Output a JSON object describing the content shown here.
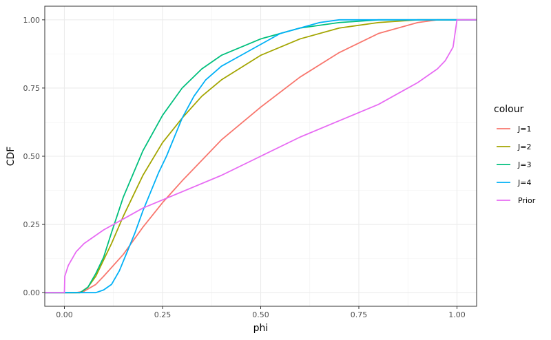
{
  "chart_data": {
    "type": "line",
    "xlabel": "phi",
    "ylabel": "CDF",
    "xlim": [
      -0.05,
      1.05
    ],
    "ylim": [
      -0.05,
      1.05
    ],
    "x_ticks": [
      0.0,
      0.25,
      0.5,
      0.75,
      1.0
    ],
    "x_tick_labels": [
      "0.00",
      "0.25",
      "0.50",
      "0.75",
      "1.00"
    ],
    "y_ticks": [
      0.0,
      0.25,
      0.5,
      0.75,
      1.0
    ],
    "y_tick_labels": [
      "0.00",
      "0.25",
      "0.50",
      "0.75",
      "1.00"
    ],
    "grid": true,
    "legend": {
      "title": "colour",
      "position": "right"
    },
    "series": [
      {
        "name": "J=1",
        "color": "#F8766D",
        "points": [
          [
            -0.05,
            0
          ],
          [
            0.0,
            0
          ],
          [
            0.03,
            0
          ],
          [
            0.05,
            0.005
          ],
          [
            0.08,
            0.03
          ],
          [
            0.1,
            0.06
          ],
          [
            0.15,
            0.14
          ],
          [
            0.2,
            0.24
          ],
          [
            0.25,
            0.33
          ],
          [
            0.3,
            0.41
          ],
          [
            0.4,
            0.56
          ],
          [
            0.5,
            0.68
          ],
          [
            0.6,
            0.79
          ],
          [
            0.7,
            0.88
          ],
          [
            0.8,
            0.95
          ],
          [
            0.9,
            0.99
          ],
          [
            0.95,
            1.0
          ],
          [
            1.0,
            1.0
          ],
          [
            1.05,
            1.0
          ]
        ]
      },
      {
        "name": "J=2",
        "color": "#A3A500",
        "points": [
          [
            -0.05,
            0
          ],
          [
            0.0,
            0
          ],
          [
            0.04,
            0
          ],
          [
            0.06,
            0.02
          ],
          [
            0.08,
            0.06
          ],
          [
            0.1,
            0.12
          ],
          [
            0.12,
            0.18
          ],
          [
            0.15,
            0.28
          ],
          [
            0.2,
            0.43
          ],
          [
            0.25,
            0.55
          ],
          [
            0.3,
            0.64
          ],
          [
            0.35,
            0.72
          ],
          [
            0.4,
            0.78
          ],
          [
            0.5,
            0.87
          ],
          [
            0.6,
            0.93
          ],
          [
            0.7,
            0.97
          ],
          [
            0.8,
            0.99
          ],
          [
            0.9,
            1.0
          ],
          [
            1.0,
            1.0
          ],
          [
            1.05,
            1.0
          ]
        ]
      },
      {
        "name": "J=3",
        "color": "#00BF7D",
        "points": [
          [
            -0.05,
            0
          ],
          [
            0.0,
            0
          ],
          [
            0.04,
            0
          ],
          [
            0.06,
            0.02
          ],
          [
            0.08,
            0.07
          ],
          [
            0.1,
            0.13
          ],
          [
            0.12,
            0.22
          ],
          [
            0.15,
            0.35
          ],
          [
            0.2,
            0.52
          ],
          [
            0.25,
            0.65
          ],
          [
            0.3,
            0.75
          ],
          [
            0.35,
            0.82
          ],
          [
            0.4,
            0.87
          ],
          [
            0.5,
            0.93
          ],
          [
            0.6,
            0.97
          ],
          [
            0.7,
            0.99
          ],
          [
            0.8,
            1.0
          ],
          [
            1.0,
            1.0
          ],
          [
            1.05,
            1.0
          ]
        ]
      },
      {
        "name": "J=4",
        "color": "#00B0F6",
        "points": [
          [
            -0.05,
            0
          ],
          [
            0.0,
            0
          ],
          [
            0.05,
            0
          ],
          [
            0.08,
            0
          ],
          [
            0.1,
            0.01
          ],
          [
            0.12,
            0.03
          ],
          [
            0.14,
            0.08
          ],
          [
            0.16,
            0.15
          ],
          [
            0.18,
            0.22
          ],
          [
            0.2,
            0.3
          ],
          [
            0.22,
            0.37
          ],
          [
            0.24,
            0.44
          ],
          [
            0.26,
            0.5
          ],
          [
            0.28,
            0.57
          ],
          [
            0.3,
            0.64
          ],
          [
            0.33,
            0.72
          ],
          [
            0.36,
            0.78
          ],
          [
            0.4,
            0.83
          ],
          [
            0.45,
            0.87
          ],
          [
            0.5,
            0.91
          ],
          [
            0.55,
            0.95
          ],
          [
            0.6,
            0.97
          ],
          [
            0.65,
            0.99
          ],
          [
            0.7,
            1.0
          ],
          [
            0.75,
            1.0
          ],
          [
            1.0,
            1.0
          ],
          [
            1.05,
            1.0
          ]
        ]
      },
      {
        "name": "Prior",
        "color": "#E76BF3",
        "points": [
          [
            -0.05,
            0
          ],
          [
            0.0,
            0
          ],
          [
            0.001,
            0.06
          ],
          [
            0.01,
            0.1
          ],
          [
            0.03,
            0.15
          ],
          [
            0.05,
            0.18
          ],
          [
            0.1,
            0.23
          ],
          [
            0.15,
            0.27
          ],
          [
            0.2,
            0.31
          ],
          [
            0.25,
            0.34
          ],
          [
            0.3,
            0.37
          ],
          [
            0.4,
            0.43
          ],
          [
            0.5,
            0.5
          ],
          [
            0.6,
            0.57
          ],
          [
            0.7,
            0.63
          ],
          [
            0.75,
            0.66
          ],
          [
            0.8,
            0.69
          ],
          [
            0.85,
            0.73
          ],
          [
            0.9,
            0.77
          ],
          [
            0.95,
            0.82
          ],
          [
            0.97,
            0.85
          ],
          [
            0.99,
            0.9
          ],
          [
            1.0,
            1.0
          ],
          [
            1.05,
            1.0
          ]
        ]
      }
    ]
  }
}
